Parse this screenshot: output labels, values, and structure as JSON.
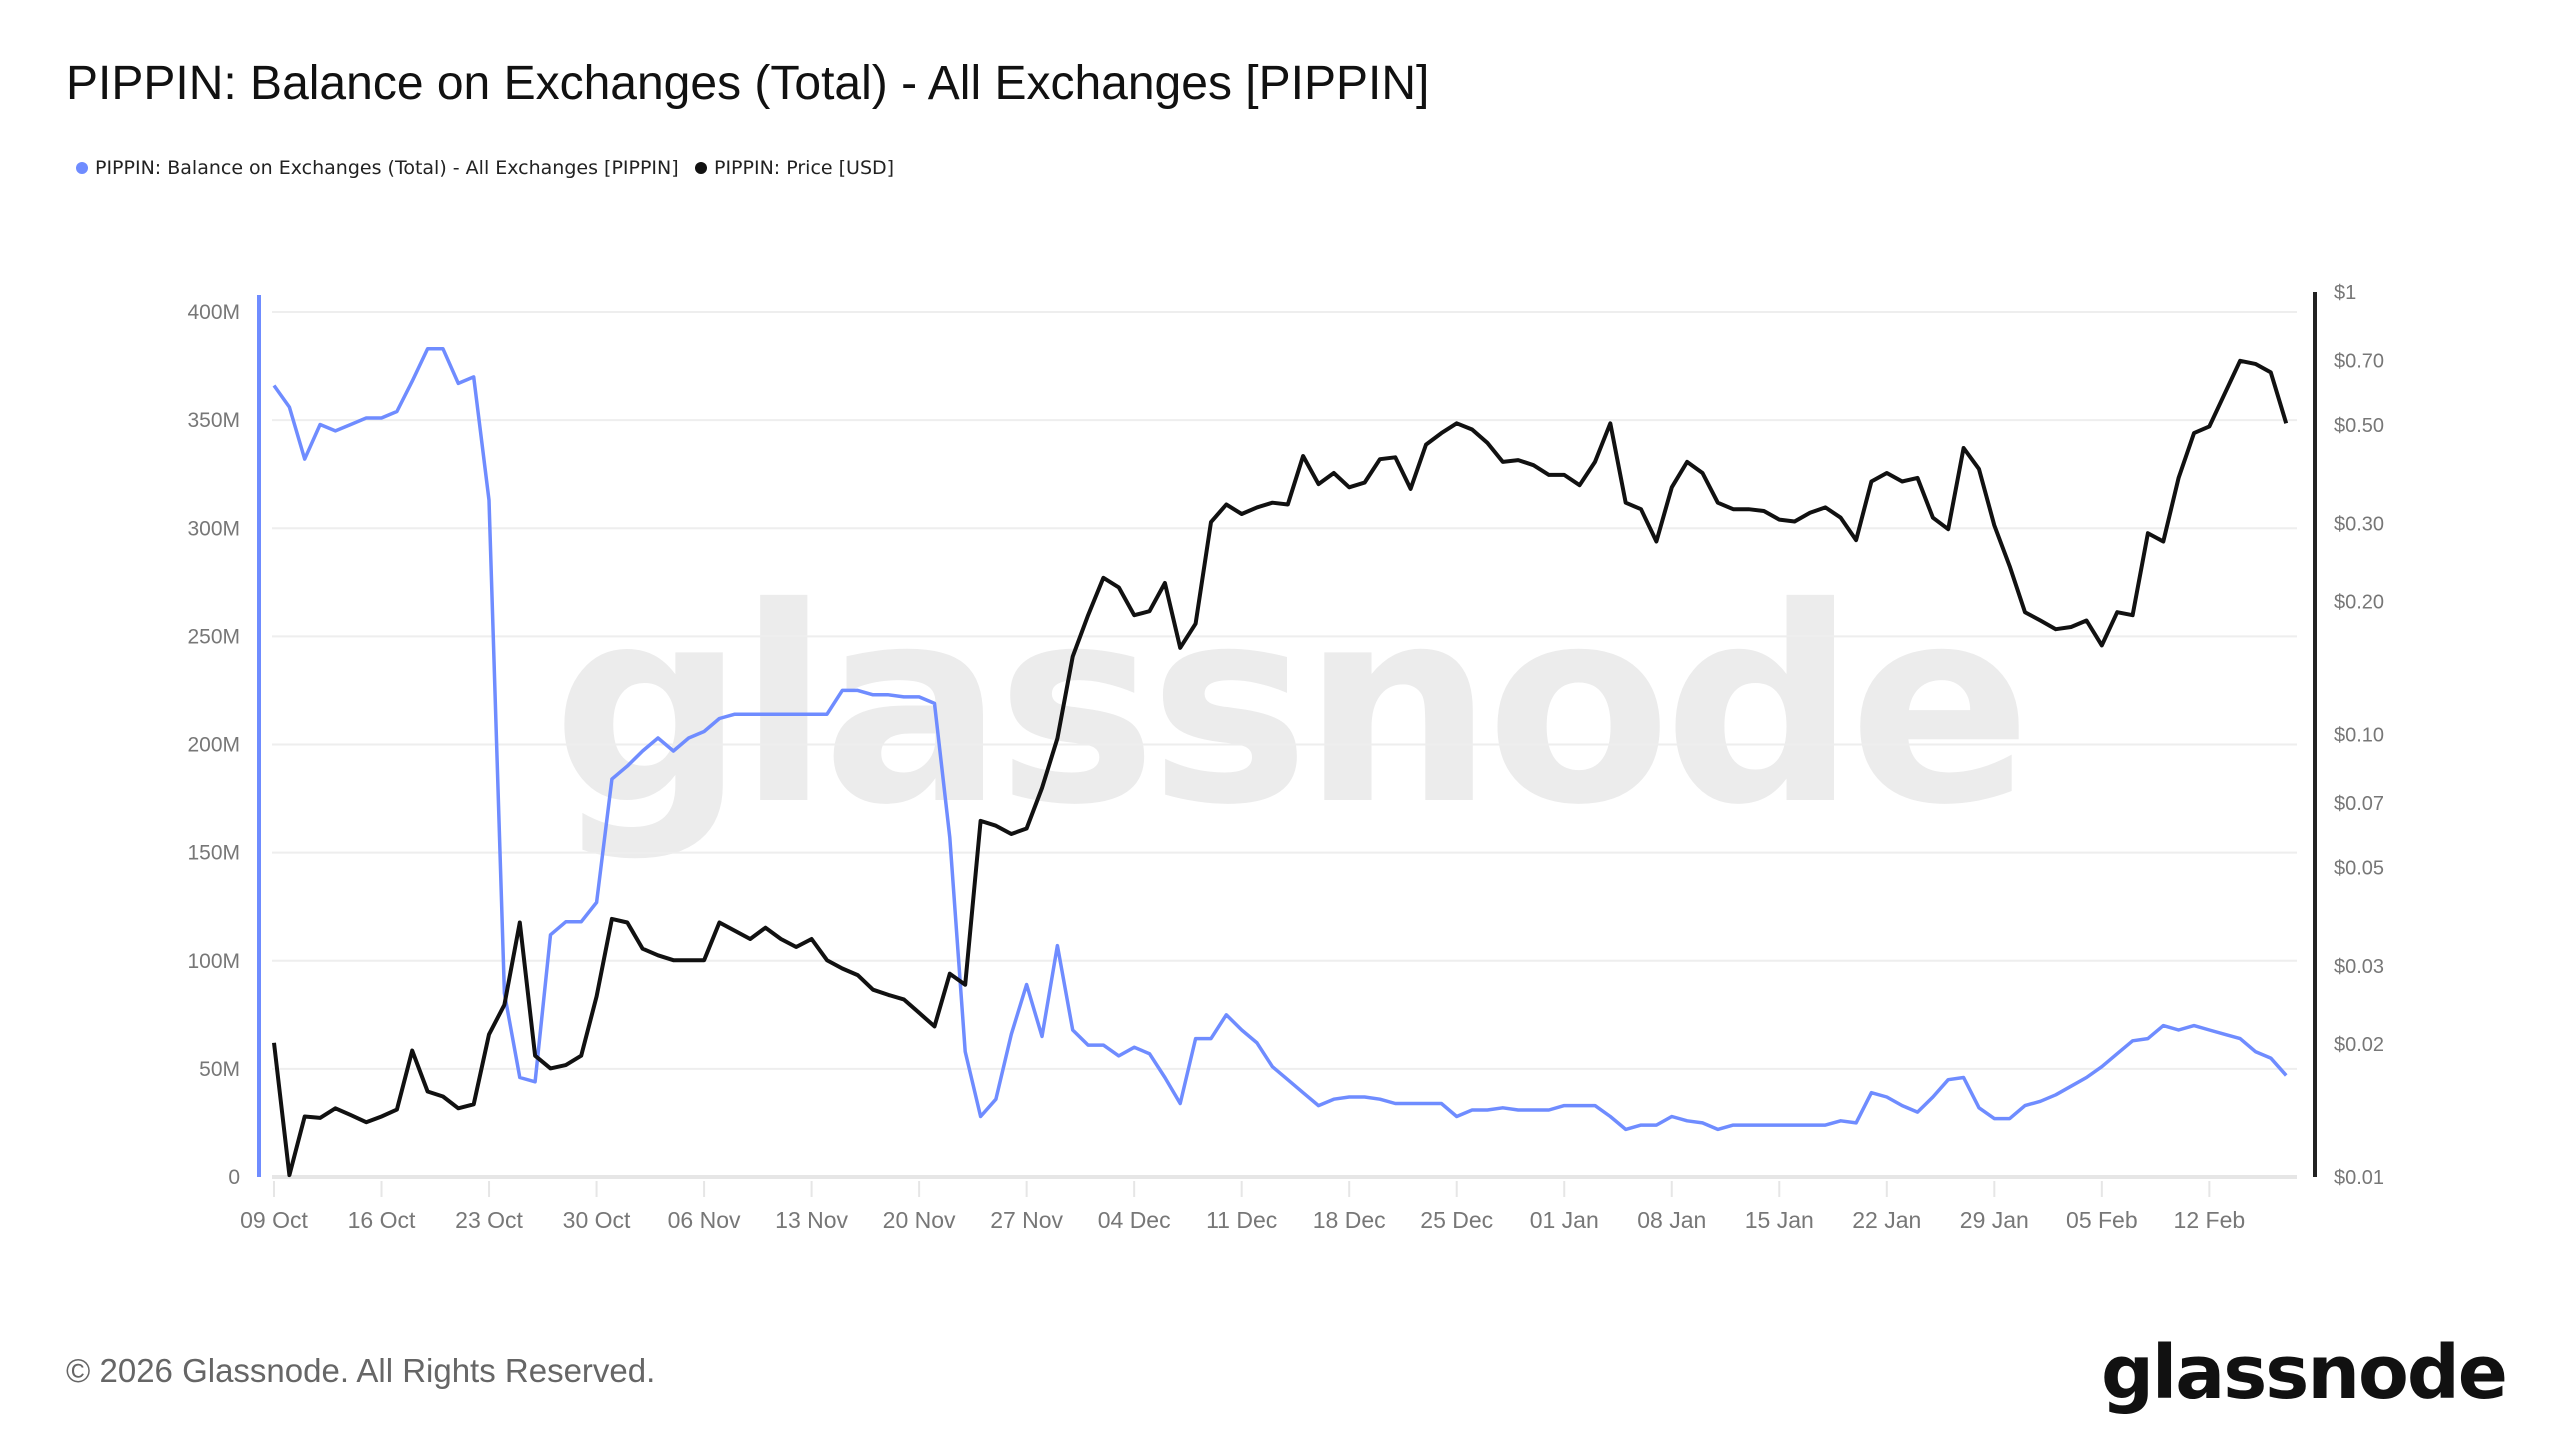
{
  "title": "PIPPIN: Balance on Exchanges (Total) - All Exchanges [PIPPIN]",
  "footer": "© 2026 Glassnode. All Rights Reserved.",
  "logo": "glassnode",
  "watermark": "glassnode",
  "colors": {
    "balance": "#6f8cff",
    "price": "#111111",
    "grid": "#eeeeee",
    "tick_text": "#777777"
  },
  "chart_data": {
    "type": "line",
    "title": "PIPPIN: Balance on Exchanges (Total) - All Exchanges [PIPPIN]",
    "legend": [
      "PIPPIN: Balance on Exchanges (Total) - All Exchanges [PIPPIN]",
      "PIPPIN: Price [USD]"
    ],
    "legend_placement": "top-left",
    "grid": true,
    "x_tick_labels": [
      "09 Oct",
      "16 Oct",
      "23 Oct",
      "30 Oct",
      "06 Nov",
      "13 Nov",
      "20 Nov",
      "27 Nov",
      "04 Dec",
      "11 Dec",
      "18 Dec",
      "25 Dec",
      "01 Jan",
      "08 Jan",
      "15 Jan",
      "22 Jan",
      "29 Jan",
      "05 Feb",
      "12 Feb"
    ],
    "y_left": {
      "ticks": [
        "0",
        "50M",
        "100M",
        "150M",
        "200M",
        "250M",
        "300M",
        "350M",
        "400M"
      ],
      "range": [
        0,
        400
      ],
      "unit": "M"
    },
    "y_right": {
      "scale": "log",
      "ticks": [
        "$0.01",
        "$0.02",
        "$0.03",
        "$0.05",
        "$0.07",
        "$0.10",
        "$0.20",
        "$0.30",
        "$0.50",
        "$0.70",
        "$1"
      ],
      "tick_values": [
        0.01,
        0.02,
        0.03,
        0.05,
        0.07,
        0.1,
        0.2,
        0.3,
        0.5,
        0.7,
        1
      ],
      "range": [
        0.01,
        1
      ]
    },
    "x": [
      "2025-10-09",
      "2025-10-10",
      "2025-10-11",
      "2025-10-12",
      "2025-10-13",
      "2025-10-14",
      "2025-10-15",
      "2025-10-16",
      "2025-10-17",
      "2025-10-18",
      "2025-10-19",
      "2025-10-20",
      "2025-10-21",
      "2025-10-22",
      "2025-10-23",
      "2025-10-24",
      "2025-10-25",
      "2025-10-26",
      "2025-10-27",
      "2025-10-28",
      "2025-10-29",
      "2025-10-30",
      "2025-10-31",
      "2025-11-01",
      "2025-11-02",
      "2025-11-03",
      "2025-11-04",
      "2025-11-05",
      "2025-11-06",
      "2025-11-07",
      "2025-11-08",
      "2025-11-09",
      "2025-11-10",
      "2025-11-11",
      "2025-11-12",
      "2025-11-13",
      "2025-11-14",
      "2025-11-15",
      "2025-11-16",
      "2025-11-17",
      "2025-11-18",
      "2025-11-19",
      "2025-11-20",
      "2025-11-21",
      "2025-11-22",
      "2025-11-23",
      "2025-11-24",
      "2025-11-25",
      "2025-11-26",
      "2025-11-27",
      "2025-11-28",
      "2025-11-29",
      "2025-11-30",
      "2025-12-01",
      "2025-12-02",
      "2025-12-03",
      "2025-12-04",
      "2025-12-05",
      "2025-12-06",
      "2025-12-07",
      "2025-12-08",
      "2025-12-09",
      "2025-12-10",
      "2025-12-11",
      "2025-12-12",
      "2025-12-13",
      "2025-12-14",
      "2025-12-15",
      "2025-12-16",
      "2025-12-17",
      "2025-12-18",
      "2025-12-19",
      "2025-12-20",
      "2025-12-21",
      "2025-12-22",
      "2025-12-23",
      "2025-12-24",
      "2025-12-25",
      "2025-12-26",
      "2025-12-27",
      "2025-12-28",
      "2025-12-29",
      "2025-12-30",
      "2025-12-31",
      "2026-01-01",
      "2026-01-02",
      "2026-01-03",
      "2026-01-04",
      "2026-01-05",
      "2026-01-06",
      "2026-01-07",
      "2026-01-08",
      "2026-01-09",
      "2026-01-10",
      "2026-01-11",
      "2026-01-12",
      "2026-01-13",
      "2026-01-14",
      "2026-01-15",
      "2026-01-16",
      "2026-01-17",
      "2026-01-18",
      "2026-01-19",
      "2026-01-20",
      "2026-01-21",
      "2026-01-22",
      "2026-01-23",
      "2026-01-24",
      "2026-01-25",
      "2026-01-26",
      "2026-01-27",
      "2026-01-28",
      "2026-01-29",
      "2026-01-30",
      "2026-01-31",
      "2026-02-01",
      "2026-02-02",
      "2026-02-03",
      "2026-02-04",
      "2026-02-05",
      "2026-02-06",
      "2026-02-07",
      "2026-02-08",
      "2026-02-09",
      "2026-02-10",
      "2026-02-11",
      "2026-02-12",
      "2026-02-13",
      "2026-02-14",
      "2026-02-15",
      "2026-02-16",
      "2026-02-17"
    ],
    "series": [
      {
        "name": "PIPPIN: Balance on Exchanges (Total) - All Exchanges [PIPPIN]",
        "axis": "left",
        "unit": "M",
        "values": [
          366,
          356,
          332,
          348,
          345,
          348,
          351,
          351,
          354,
          368,
          383,
          383,
          367,
          370,
          313,
          85,
          46,
          44,
          112,
          118,
          118,
          127,
          184,
          190,
          197,
          203,
          197,
          203,
          206,
          212,
          214,
          214,
          214,
          214,
          214,
          214,
          214,
          225,
          225,
          223,
          223,
          222,
          222,
          219,
          157,
          58,
          28,
          36,
          66,
          89,
          65,
          107,
          68,
          61,
          61,
          56,
          60,
          57,
          46,
          34,
          64,
          64,
          75,
          68,
          62,
          51,
          45,
          39,
          33,
          36,
          37,
          37,
          36,
          34,
          34,
          34,
          34,
          28,
          31,
          31,
          32,
          31,
          31,
          31,
          33,
          33,
          33,
          28,
          22,
          24,
          24,
          28,
          26,
          25,
          22,
          24,
          24,
          24,
          24,
          24,
          24,
          24,
          26,
          25,
          39,
          37,
          33,
          30,
          37,
          45,
          46,
          32,
          27,
          27,
          33,
          35,
          38,
          42,
          46,
          51,
          57,
          63,
          64,
          70,
          68,
          70,
          68,
          66,
          64,
          58,
          55,
          47
        ]
      },
      {
        "name": "PIPPIN: Price [USD]",
        "axis": "right",
        "values": [
          0.0201,
          0.0101,
          0.0137,
          0.0136,
          0.0143,
          0.0138,
          0.0133,
          0.0137,
          0.0142,
          0.0193,
          0.0156,
          0.0152,
          0.0143,
          0.0146,
          0.021,
          0.0245,
          0.0376,
          0.0188,
          0.0176,
          0.0179,
          0.0188,
          0.0256,
          0.0383,
          0.0376,
          0.0328,
          0.0317,
          0.0309,
          0.0309,
          0.0309,
          0.0376,
          0.036,
          0.0345,
          0.0366,
          0.0345,
          0.0331,
          0.0345,
          0.0309,
          0.0296,
          0.0286,
          0.0265,
          0.0258,
          0.0252,
          0.0235,
          0.0219,
          0.0288,
          0.0272,
          0.0638,
          0.0622,
          0.0596,
          0.0613,
          0.0757,
          0.098,
          0.15,
          0.186,
          0.226,
          0.215,
          0.186,
          0.19,
          0.22,
          0.157,
          0.178,
          0.302,
          0.331,
          0.315,
          0.326,
          0.334,
          0.331,
          0.426,
          0.368,
          0.39,
          0.362,
          0.371,
          0.419,
          0.423,
          0.359,
          0.452,
          0.48,
          0.505,
          0.489,
          0.456,
          0.413,
          0.417,
          0.406,
          0.386,
          0.386,
          0.366,
          0.413,
          0.505,
          0.334,
          0.323,
          0.273,
          0.362,
          0.413,
          0.39,
          0.334,
          0.323,
          0.323,
          0.32,
          0.306,
          0.303,
          0.317,
          0.326,
          0.309,
          0.275,
          0.373,
          0.39,
          0.373,
          0.38,
          0.309,
          0.291,
          0.444,
          0.398,
          0.297,
          0.24,
          0.189,
          0.181,
          0.173,
          0.175,
          0.181,
          0.159,
          0.189,
          0.186,
          0.285,
          0.273,
          0.38,
          0.48,
          0.497,
          0.589,
          0.699,
          0.688,
          0.658,
          0.505
        ]
      }
    ]
  }
}
